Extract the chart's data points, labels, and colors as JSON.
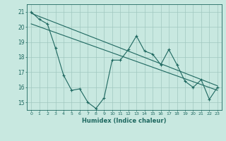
{
  "bg_color": "#c8e8e0",
  "grid_color": "#a0c8c0",
  "line_color": "#1e6860",
  "xlabel": "Humidex (Indice chaleur)",
  "xlim": [
    -0.5,
    23.5
  ],
  "ylim": [
    14.5,
    21.5
  ],
  "yticks": [
    15,
    16,
    17,
    18,
    19,
    20,
    21
  ],
  "xticks": [
    0,
    1,
    2,
    3,
    4,
    5,
    6,
    7,
    8,
    9,
    10,
    11,
    12,
    13,
    14,
    15,
    16,
    17,
    18,
    19,
    20,
    21,
    22,
    23
  ],
  "trend1_x": [
    0,
    23
  ],
  "trend1_y": [
    20.9,
    16.1
  ],
  "trend2_x": [
    0,
    23
  ],
  "trend2_y": [
    20.2,
    15.8
  ],
  "zigzag_x": [
    0,
    1,
    2,
    3,
    4,
    5,
    6,
    7,
    8,
    9,
    10,
    11,
    12,
    13,
    14,
    15,
    16,
    17,
    18,
    19,
    20,
    21,
    22,
    23
  ],
  "zigzag_y": [
    21.0,
    20.5,
    20.2,
    18.6,
    16.8,
    15.8,
    15.9,
    15.0,
    14.6,
    15.3,
    17.8,
    17.8,
    18.5,
    19.4,
    18.4,
    18.2,
    17.5,
    18.5,
    17.5,
    16.4,
    16.0,
    16.5,
    15.2,
    16.0
  ]
}
